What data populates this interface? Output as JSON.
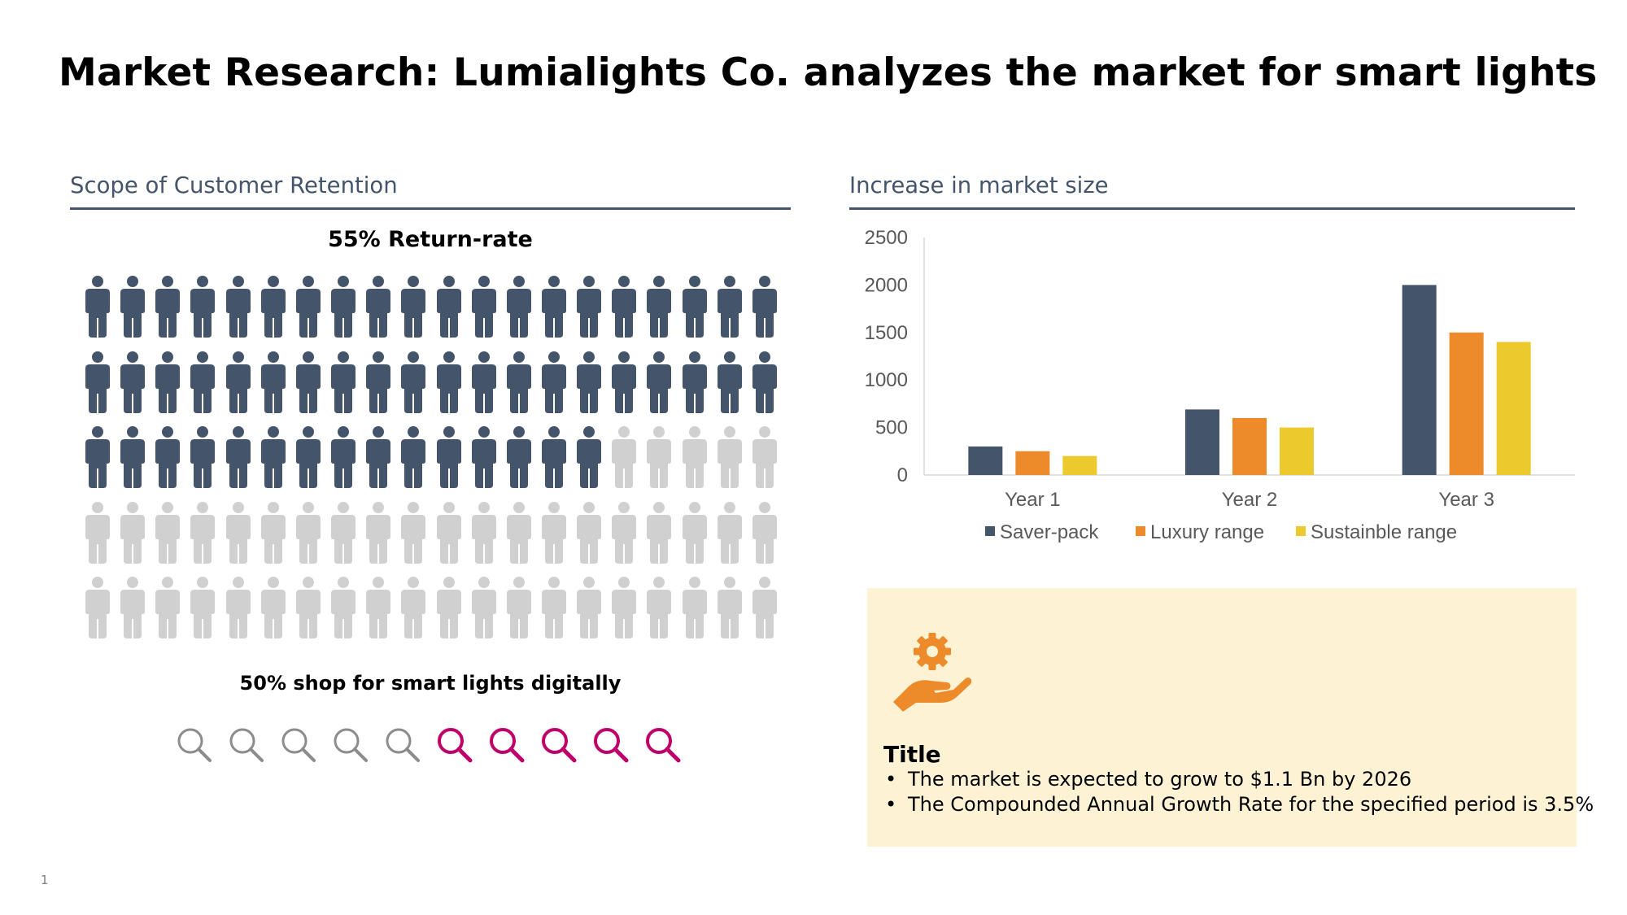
{
  "title": "Market Research: Lumialights Co. analyzes the market for smart lights",
  "colors": {
    "dark": "#44546a",
    "orange": "#ed8b2b",
    "yellow": "#ecc92c",
    "grey": "#d0d0d0",
    "magenta": "#c0006a",
    "box": "#fdf3d4"
  },
  "retention": {
    "section_title": "Scope of Customer Retention",
    "headline": "55% Return-rate",
    "people_total": 100,
    "people_highlighted": 55,
    "people_icon": "person-icon",
    "digital_label": "50% shop for smart lights digitally",
    "search_total": 10,
    "search_highlighted": 5,
    "search_icon": "magnifier-icon"
  },
  "market": {
    "section_title": "Increase in market size"
  },
  "chart_data": {
    "type": "bar",
    "categories": [
      "Year 1",
      "Year 2",
      "Year 3"
    ],
    "series": [
      {
        "name": "Saver-pack",
        "color": "#44546a",
        "values": [
          300,
          690,
          2000
        ]
      },
      {
        "name": "Luxury range",
        "color": "#ed8b2b",
        "values": [
          250,
          600,
          1500
        ]
      },
      {
        "name": "Sustainble range",
        "color": "#ecc92c",
        "values": [
          200,
          500,
          1400
        ]
      }
    ],
    "yticks": [
      0,
      500,
      1000,
      1500,
      2000,
      2500
    ],
    "ylim": [
      0,
      2500
    ],
    "grid": false,
    "legend": "bottom"
  },
  "info": {
    "icon": "gear-hand-icon",
    "title": "Title",
    "bullets": [
      "The market is expected to grow to $1.1 Bn by 2026",
      "The Compounded Annual Growth Rate for the specified period is 3.5%"
    ]
  },
  "page_number": "1"
}
